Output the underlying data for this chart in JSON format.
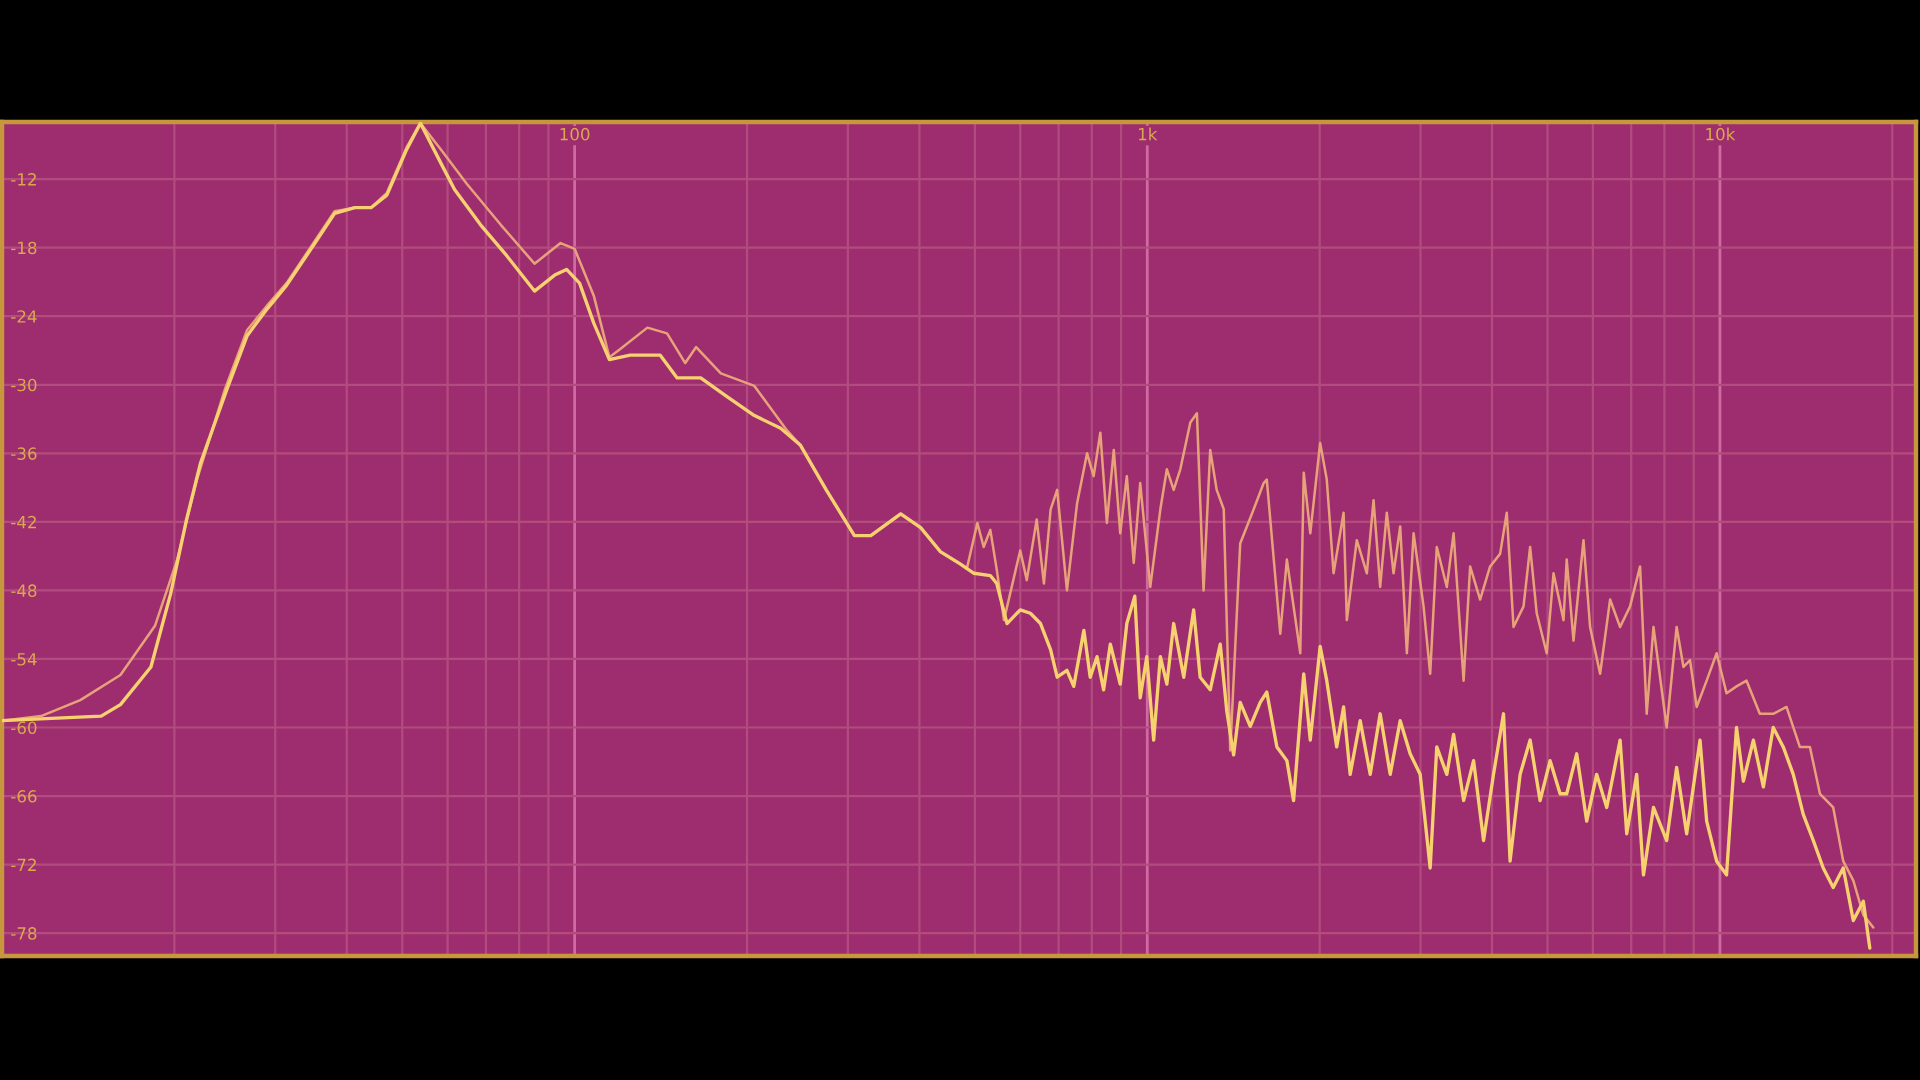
{
  "chart_data": {
    "type": "line",
    "log": "x",
    "grid": true,
    "xlim": [
      10,
      22000
    ],
    "ylim": [
      -80,
      -7
    ],
    "xticks": [
      {
        "value": 20,
        "label": null
      },
      {
        "value": 30,
        "label": null
      },
      {
        "value": 40,
        "label": null
      },
      {
        "value": 50,
        "label": null
      },
      {
        "value": 60,
        "label": null
      },
      {
        "value": 70,
        "label": null
      },
      {
        "value": 80,
        "label": null
      },
      {
        "value": 90,
        "label": null
      },
      100,
      {
        "value": 200,
        "label": null
      },
      {
        "value": 300,
        "label": null
      },
      {
        "value": 400,
        "label": null
      },
      {
        "value": 500,
        "label": null
      },
      {
        "value": 600,
        "label": null
      },
      {
        "value": 700,
        "label": null
      },
      {
        "value": 800,
        "label": null
      },
      {
        "value": 900,
        "label": null
      },
      {
        "value": 1000,
        "label": "1k"
      },
      {
        "value": 2000,
        "label": null
      },
      {
        "value": 3000,
        "label": null
      },
      {
        "value": 4000,
        "label": null
      },
      {
        "value": 5000,
        "label": null
      },
      {
        "value": 6000,
        "label": null
      },
      {
        "value": 7000,
        "label": null
      },
      {
        "value": 8000,
        "label": null
      },
      {
        "value": 9000,
        "label": null
      },
      {
        "value": 10000,
        "label": "10k"
      },
      {
        "value": 20000,
        "label": null
      }
    ],
    "yticks": [
      -12,
      -18,
      -24,
      -30,
      -36,
      -42,
      -48,
      -54,
      -60,
      -66,
      -72,
      -78
    ],
    "series": [
      {
        "color": "#e8a27a",
        "x": [
          10,
          11.7,
          13.7,
          16.1,
          18.5,
          20.2,
          21.9,
          24.5,
          26.8,
          29.0,
          31.4,
          35.2,
          38.1,
          41.3,
          44.1,
          47.0,
          50.9,
          53.8,
          58.4,
          64.8,
          74.3,
          85.1,
          94.5,
          100,
          108,
          115,
          120,
          134,
          145,
          156,
          163,
          180,
          206,
          234,
          248,
          275,
          308,
          329,
          371,
          402,
          435,
          472,
          484,
          505,
          518,
          532,
          546,
          562,
          600,
          616,
          641,
          660,
          678,
          696,
          724,
          754,
          785,
          806,
          828,
          850,
          874,
          897,
          921,
          947,
          972,
          1012,
          1054,
          1082,
          1112,
          1142,
          1189,
          1221,
          1254,
          1288,
          1322,
          1360,
          1396,
          1453,
          1534,
          1597,
          1617,
          1707,
          1753,
          1850,
          1876,
          1926,
          2004,
          2058,
          2115,
          2202,
          2231,
          2322,
          2418,
          2484,
          2551,
          2620,
          2692,
          2765,
          2840,
          2918,
          3037,
          3119,
          3203,
          3335,
          3427,
          3568,
          3663,
          3813,
          3969,
          4132,
          4244,
          4361,
          4540,
          4662,
          4787,
          4984,
          5122,
          5332,
          5401,
          5550,
          5778,
          5933,
          6177,
          6430,
          6694,
          6968,
          7254,
          7450,
          7656,
          8073,
          8403,
          8637,
          8868,
          9107,
          9481,
          9869,
          10270,
          10690,
          11130,
          11740,
          12390,
          13070,
          13790,
          14360,
          14950,
          15770,
          16420,
          17100,
          17800,
          18530
        ],
        "values": [
          -59.4,
          -59.0,
          -57.6,
          -55.4,
          -51.1,
          -45.4,
          -38.3,
          -30.4,
          -25.2,
          -23.1,
          -21.1,
          -17.4,
          -14.8,
          -14.5,
          -14.5,
          -13.2,
          -9.2,
          -7.1,
          -9.4,
          -12.4,
          -16.0,
          -19.4,
          -17.6,
          -18.1,
          -22.2,
          -27.6,
          -26.9,
          -25.0,
          -25.5,
          -28.1,
          -26.7,
          -29.0,
          -30.1,
          -33.9,
          -35.3,
          -39.2,
          -43.2,
          -43.2,
          -41.3,
          -42.5,
          -44.6,
          -45.7,
          -46.1,
          -42.1,
          -44.2,
          -42.7,
          -46.2,
          -50.6,
          -44.5,
          -47.1,
          -41.8,
          -47.4,
          -40.9,
          -39.2,
          -48.0,
          -40.4,
          -36.0,
          -38.0,
          -34.2,
          -42.1,
          -35.7,
          -43.0,
          -38.0,
          -45.6,
          -38.6,
          -47.7,
          -40.9,
          -37.4,
          -39.2,
          -37.4,
          -33.3,
          -32.5,
          -48.0,
          -35.7,
          -39.2,
          -40.9,
          -62.0,
          -43.9,
          -40.9,
          -38.6,
          -38.3,
          -51.8,
          -45.3,
          -53.5,
          -37.7,
          -43.0,
          -35.1,
          -38.3,
          -46.5,
          -41.2,
          -50.6,
          -43.6,
          -46.5,
          -40.1,
          -47.7,
          -41.2,
          -46.5,
          -42.4,
          -53.5,
          -43.0,
          -49.4,
          -55.3,
          -44.2,
          -47.7,
          -43.0,
          -55.9,
          -45.9,
          -48.8,
          -45.9,
          -44.8,
          -41.2,
          -51.2,
          -49.4,
          -44.2,
          -50.0,
          -53.5,
          -46.5,
          -50.6,
          -45.3,
          -52.4,
          -43.6,
          -51.2,
          -55.3,
          -48.8,
          -51.2,
          -49.4,
          -45.9,
          -58.8,
          -51.2,
          -60.0,
          -51.2,
          -54.7,
          -54.1,
          -58.2,
          -55.9,
          -53.5,
          -57.0,
          -56.4,
          -55.9,
          -58.8,
          -58.8,
          -58.2,
          -61.7,
          -61.7,
          -65.8,
          -67.0,
          -71.7,
          -73.4,
          -76.4,
          -77.5
        ]
      },
      {
        "color": "#f7d070",
        "x": [
          10,
          14.9,
          16.1,
          18.2,
          19.7,
          21.0,
          22.2,
          24.7,
          26.8,
          29.0,
          31.4,
          35.2,
          38.1,
          41.3,
          44.1,
          47.0,
          50.9,
          53.8,
          58.4,
          61.7,
          68.5,
          76.1,
          85.1,
          92.3,
          96.8,
          102,
          108,
          115,
          125,
          141,
          151,
          166,
          184,
          206,
          229,
          248,
          275,
          308,
          329,
          371,
          402,
          435,
          472,
          498,
          532,
          546,
          569,
          600,
          625,
          651,
          678,
          696,
          724,
          744,
          775,
          795,
          817,
          839,
          862,
          897,
          921,
          951,
          972,
          998,
          1026,
          1054,
          1082,
          1112,
          1158,
          1205,
          1237,
          1288,
          1341,
          1377,
          1415,
          1453,
          1513,
          1575,
          1617,
          1684,
          1753,
          1801,
          1876,
          1926,
          2004,
          2058,
          2142,
          2202,
          2261,
          2354,
          2451,
          2551,
          2656,
          2765,
          2878,
          2996,
          3119,
          3203,
          3335,
          3427,
          3568,
          3714,
          3866,
          4024,
          4189,
          4301,
          4478,
          4662,
          4853,
          5052,
          5259,
          5401,
          5622,
          5853,
          6092,
          6344,
          6694,
          6875,
          7156,
          7354,
          7656,
          8073,
          8403,
          8749,
          9232,
          9481,
          9869,
          10270,
          10690,
          10990,
          11440,
          11910,
          12390,
          12900,
          13430,
          13980,
          14560,
          15150,
          15770,
          16420,
          17100,
          17800,
          18270
        ],
        "values": [
          -59.4,
          -59.0,
          -58.0,
          -54.7,
          -48.3,
          -41.8,
          -36.9,
          -30.4,
          -25.7,
          -23.4,
          -21.3,
          -17.6,
          -15.0,
          -14.5,
          -14.5,
          -13.4,
          -9.4,
          -7.1,
          -10.6,
          -12.9,
          -16.0,
          -18.7,
          -21.8,
          -20.4,
          -19.9,
          -21.1,
          -24.6,
          -27.8,
          -27.4,
          -27.4,
          -29.4,
          -29.4,
          -31.0,
          -32.7,
          -33.8,
          -35.3,
          -39.2,
          -43.2,
          -43.2,
          -41.3,
          -42.5,
          -44.6,
          -45.7,
          -46.5,
          -46.7,
          -47.4,
          -50.9,
          -49.7,
          -50.0,
          -50.9,
          -53.2,
          -55.6,
          -55.0,
          -56.4,
          -51.5,
          -55.6,
          -53.8,
          -56.7,
          -52.7,
          -56.2,
          -50.9,
          -48.5,
          -57.4,
          -53.8,
          -61.1,
          -53.8,
          -56.2,
          -50.9,
          -55.6,
          -49.7,
          -55.6,
          -56.7,
          -52.7,
          -58.6,
          -62.4,
          -57.8,
          -59.9,
          -57.8,
          -56.9,
          -61.7,
          -62.9,
          -66.4,
          -55.3,
          -61.1,
          -52.9,
          -55.9,
          -61.7,
          -58.2,
          -64.1,
          -59.4,
          -64.1,
          -58.8,
          -64.1,
          -59.4,
          -62.3,
          -64.1,
          -72.3,
          -61.7,
          -64.1,
          -60.6,
          -66.4,
          -62.9,
          -69.9,
          -64.1,
          -58.8,
          -71.7,
          -64.1,
          -61.1,
          -66.4,
          -62.9,
          -65.8,
          -65.8,
          -62.3,
          -68.2,
          -64.1,
          -67.0,
          -61.1,
          -69.3,
          -64.1,
          -72.9,
          -67.0,
          -69.9,
          -63.5,
          -69.3,
          -61.1,
          -68.2,
          -71.7,
          -72.9,
          -60.0,
          -64.7,
          -61.1,
          -65.2,
          -60.0,
          -61.7,
          -64.1,
          -67.6,
          -69.9,
          -72.3,
          -74.0,
          -72.3,
          -76.9,
          -75.2,
          -79.3
        ]
      }
    ]
  }
}
